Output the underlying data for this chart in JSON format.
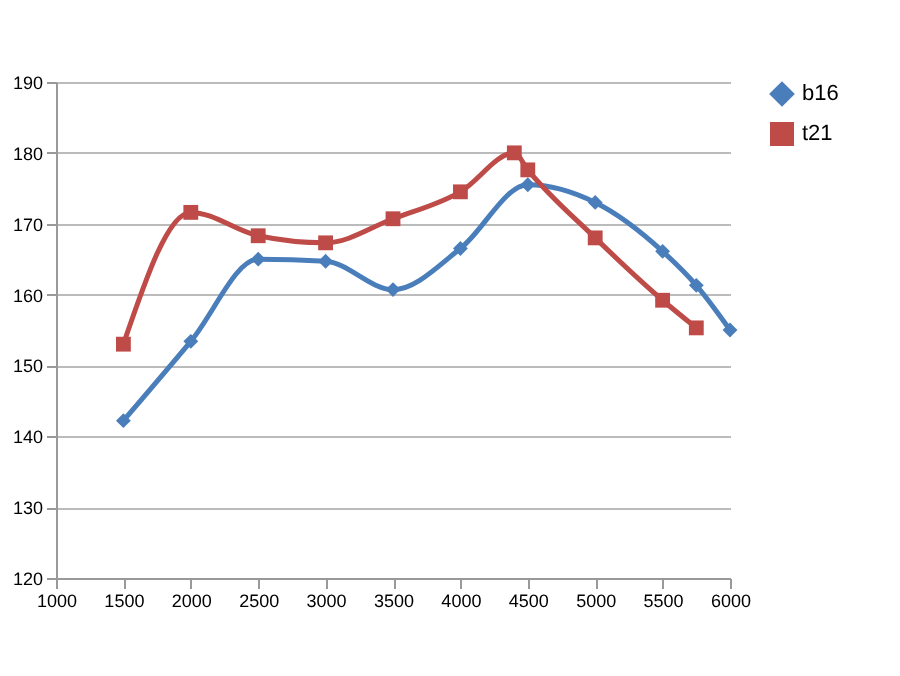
{
  "chart_data": {
    "type": "line",
    "xlim": [
      1000,
      6000
    ],
    "xticks": [
      1000,
      1500,
      2000,
      2500,
      3000,
      3500,
      4000,
      4500,
      5000,
      5500,
      6000
    ],
    "ylim": [
      120,
      190
    ],
    "yticks": [
      120,
      130,
      140,
      150,
      160,
      170,
      180,
      190
    ],
    "grid": "y",
    "legend": "right",
    "series": [
      {
        "name": "b16",
        "color": "#4a7ebb",
        "marker": "diamond",
        "x": [
          1500,
          2000,
          2500,
          3000,
          3500,
          4000,
          4500,
          5000,
          5500,
          5750,
          6000
        ],
        "values": [
          142.2,
          153.4,
          165,
          164.7,
          160.7,
          166.5,
          175.5,
          173,
          166.1,
          161.3,
          155
        ]
      },
      {
        "name": "t21",
        "color": "#be4b48",
        "marker": "square",
        "x": [
          1500,
          2000,
          2500,
          3000,
          3500,
          4000,
          4400,
          4500,
          5000,
          5500,
          5750
        ],
        "values": [
          153,
          171.6,
          168.3,
          167.3,
          170.7,
          174.5,
          180,
          177.6,
          168,
          159.2,
          155.3
        ]
      }
    ]
  }
}
